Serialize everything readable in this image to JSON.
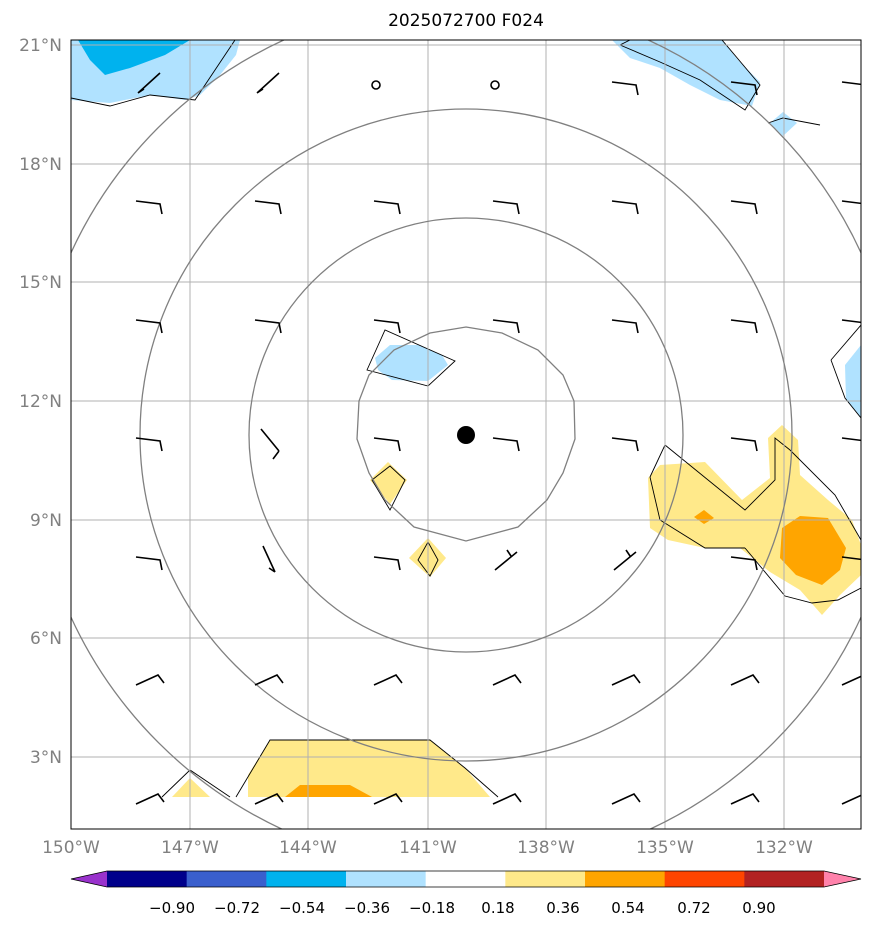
{
  "title": "2025072700 F024",
  "map": {
    "lat_labels": [
      "21°N",
      "18°N",
      "15°N",
      "12°N",
      "9°N",
      "6°N",
      "3°N"
    ],
    "lon_labels": [
      "150°W",
      "147°W",
      "144°W",
      "141°W",
      "138°W",
      "135°W",
      "132°W"
    ],
    "center_marker": "filled-circle"
  },
  "colorbar": {
    "labels": [
      "−0.90",
      "−0.72",
      "−0.54",
      "−0.36",
      "−0.18",
      "0.18",
      "0.36",
      "0.54",
      "0.72",
      "0.90"
    ],
    "colors": [
      "#9932cc",
      "#00008b",
      "#3a5fcd",
      "#00b2ee",
      "#b0e2ff",
      "#ffffff",
      "#ffe98a",
      "#ffa500",
      "#ff4500",
      "#b22222",
      "#ff82ab"
    ]
  },
  "colors": {
    "grid": "#b0b0b0",
    "contour": "#808080",
    "light_blue": "#b0e2ff",
    "blue": "#00b2ee",
    "light_yellow": "#ffe98a",
    "orange": "#ffa500"
  }
}
